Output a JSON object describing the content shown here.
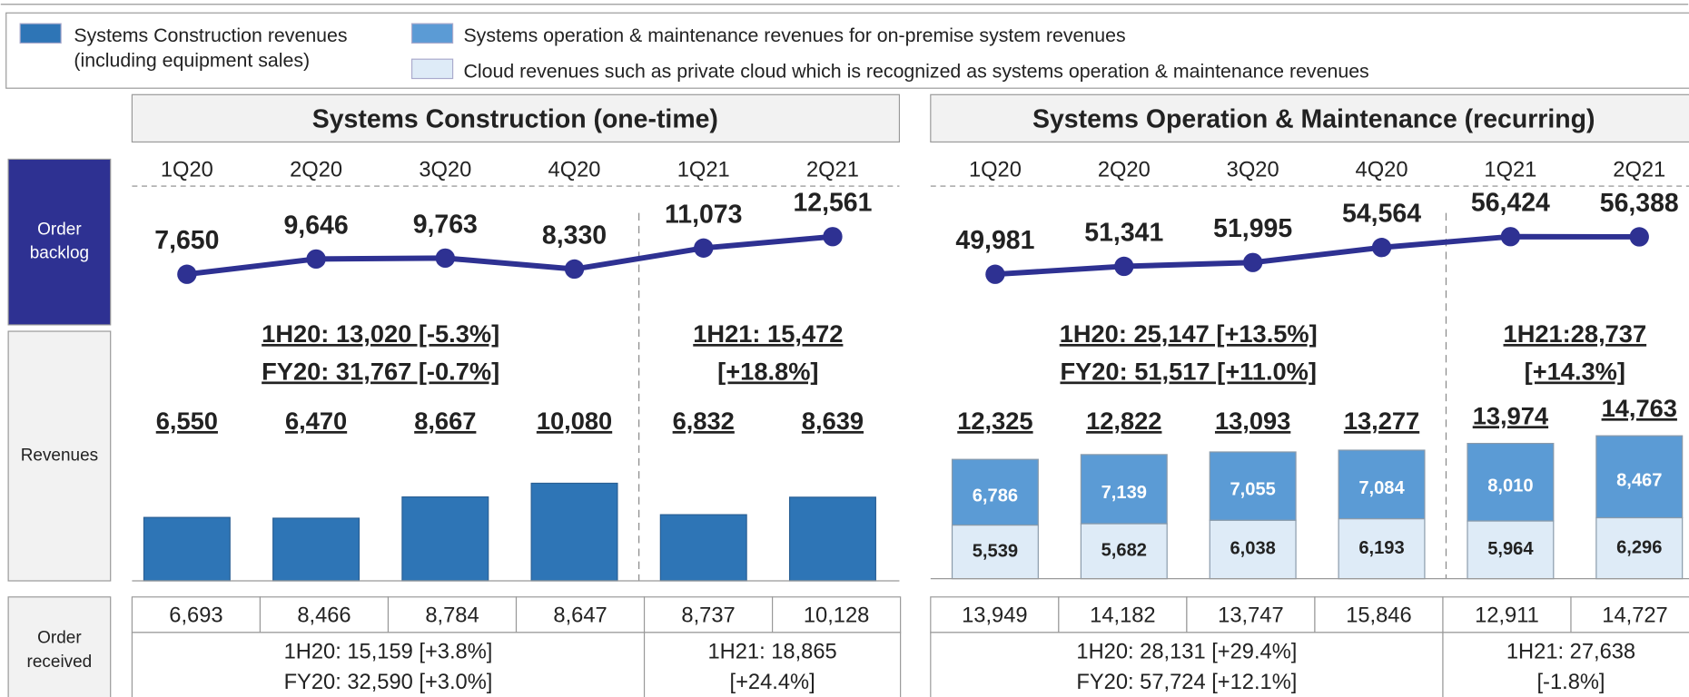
{
  "row_labels": [
    "Order backlog",
    "Revenues",
    "Order received"
  ],
  "chart_data": [
    {
      "type": "combo",
      "title": "Systems Construction (one-time)",
      "categories": [
        "1Q20",
        "2Q20",
        "3Q20",
        "4Q20",
        "1Q21",
        "2Q21"
      ],
      "backlog": {
        "color": "#2e3192",
        "values": [
          7650,
          9646,
          9763,
          8330,
          11073,
          12561
        ],
        "value_labels": [
          "7,650",
          "9,646",
          "9,763",
          "8,330",
          "11,073",
          "12,561"
        ]
      },
      "series": [
        {
          "name": "Systems Construction revenues (including equipment sales)",
          "color": "#2e75b6",
          "values": [
            6550,
            6470,
            8667,
            10080,
            6832,
            8639
          ],
          "value_labels": [
            "6,550",
            "6,470",
            "8,667",
            "10,080",
            "6,832",
            "8,639"
          ]
        }
      ],
      "revenue_summary": [
        [
          "1H20: 13,020 [-5.3%]",
          "FY20: 31,767 [-0.7%]"
        ],
        [
          "1H21: 15,472",
          "[+18.8%]"
        ]
      ],
      "orders_received": [
        "6,693",
        "8,466",
        "8,784",
        "8,647",
        "8,737",
        "10,128"
      ],
      "orders_summary": [
        [
          "1H20: 15,159 [+3.8%]",
          "FY20: 32,590 [+3.0%]"
        ],
        [
          "1H21: 18,865",
          "[+24.4%]"
        ]
      ]
    },
    {
      "type": "combo",
      "title": "Systems Operation & Maintenance (recurring)",
      "categories": [
        "1Q20",
        "2Q20",
        "3Q20",
        "4Q20",
        "1Q21",
        "2Q21"
      ],
      "backlog": {
        "color": "#2e3192",
        "values": [
          49981,
          51341,
          51995,
          54564,
          56424,
          56388
        ],
        "value_labels": [
          "49,981",
          "51,341",
          "51,995",
          "54,564",
          "56,424",
          "56,388"
        ]
      },
      "series": [
        {
          "name": "Cloud revenues such as private cloud which is recognized as systems operation & maintenance revenues",
          "color": "#deebf7",
          "values": [
            5539,
            5682,
            6038,
            6193,
            5964,
            6296
          ],
          "value_labels": [
            "5,539",
            "5,682",
            "6,038",
            "6,193",
            "5,964",
            "6,296"
          ]
        },
        {
          "name": "Systems operation & maintenance revenues for on-premise system revenues",
          "color": "#5b9bd5",
          "values": [
            6786,
            7139,
            7055,
            7084,
            8010,
            8467
          ],
          "value_labels": [
            "6,786",
            "7,139",
            "7,055",
            "7,084",
            "8,010",
            "8,467"
          ]
        }
      ],
      "totals": {
        "values": [
          12325,
          12822,
          13093,
          13277,
          13974,
          14763
        ],
        "value_labels": [
          "12,325",
          "12,822",
          "13,093",
          "13,277",
          "13,974",
          "14,763"
        ]
      },
      "revenue_summary": [
        [
          "1H20: 25,147 [+13.5%]",
          "FY20: 51,517 [+11.0%]"
        ],
        [
          "1H21:28,737",
          "[+14.3%]"
        ]
      ],
      "orders_received": [
        "13,949",
        "14,182",
        "13,747",
        "15,846",
        "12,911",
        "14,727"
      ],
      "orders_summary": [
        [
          "1H20: 28,131 [+29.4%]",
          "FY20: 57,724 [+12.1%]"
        ],
        [
          "1H21: 27,638",
          "[-1.8%]"
        ]
      ]
    }
  ]
}
